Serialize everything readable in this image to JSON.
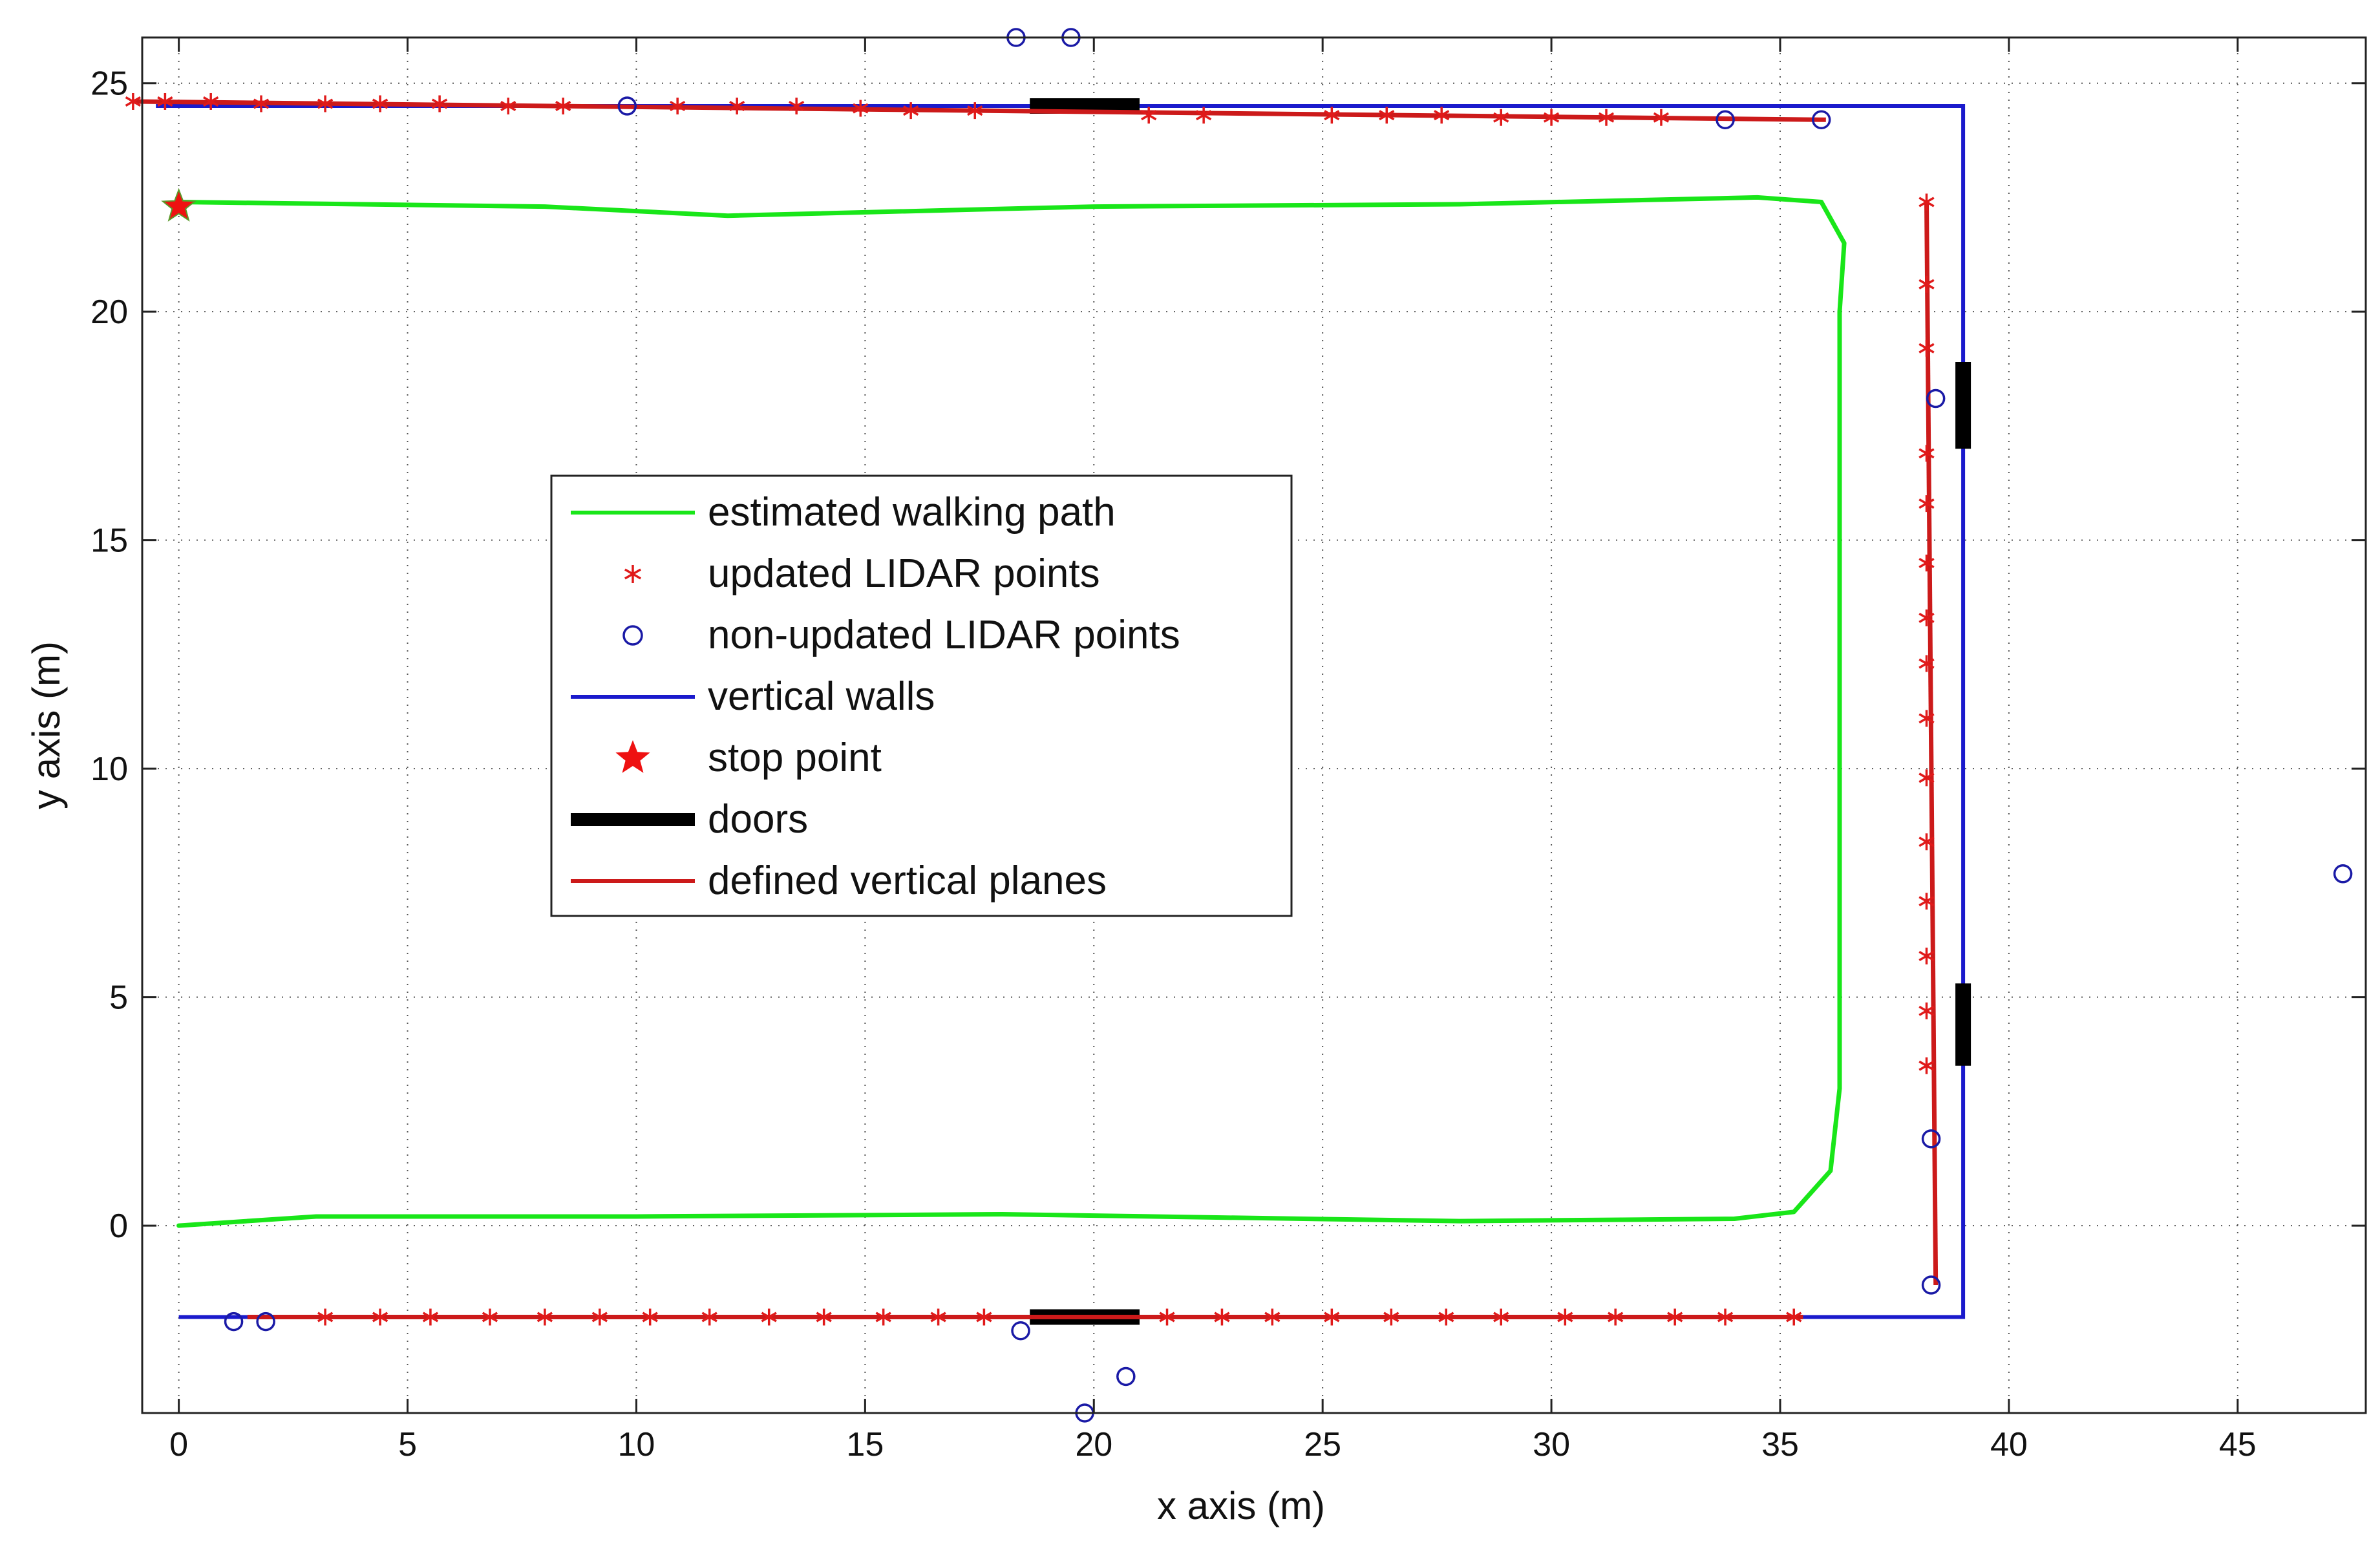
{
  "chart_data": {
    "type": "scatter",
    "xlabel": "x axis (m)",
    "ylabel": "y axis (m)",
    "xlim": [
      -0.8,
      47.8
    ],
    "ylim": [
      -4.1,
      26.0
    ],
    "xticks": [
      0,
      5,
      10,
      15,
      20,
      25,
      30,
      35,
      40,
      45
    ],
    "yticks": [
      0,
      5,
      10,
      15,
      20,
      25
    ],
    "grid": true,
    "legend_position": "center-left",
    "legend": [
      {
        "key": "path",
        "label": "estimated walking path"
      },
      {
        "key": "updated",
        "label": "updated LIDAR points"
      },
      {
        "key": "nonupdated",
        "label": "non-updated LIDAR points"
      },
      {
        "key": "walls",
        "label": "vertical walls"
      },
      {
        "key": "stop",
        "label": "stop point"
      },
      {
        "key": "doors",
        "label": "doors"
      },
      {
        "key": "planes",
        "label": "defined vertical planes"
      }
    ],
    "colors": {
      "path": "#19e619",
      "updated": "#e01a1a",
      "nonupdated": "#1a1aa6",
      "walls": "#1a1acc",
      "stop": "#ee1111",
      "doors": "#000000",
      "planes": "#cc1a1a"
    },
    "walls": [
      [
        [
          0,
          -2
        ],
        [
          39,
          -2
        ],
        [
          39,
          24.5
        ],
        [
          -0.5,
          24.5
        ]
      ]
    ],
    "doors": [
      [
        [
          18.6,
          24.5
        ],
        [
          21.0,
          24.5
        ]
      ],
      [
        [
          18.6,
          -2.0
        ],
        [
          21.0,
          -2.0
        ]
      ],
      [
        [
          39.0,
          17.0
        ],
        [
          39.0,
          18.9
        ]
      ],
      [
        [
          39.0,
          3.5
        ],
        [
          39.0,
          5.3
        ]
      ]
    ],
    "defined_planes": [
      [
        [
          -1.0,
          24.6
        ],
        [
          36.0,
          24.2
        ]
      ],
      [
        [
          1.5,
          -2.0
        ],
        [
          35.5,
          -2.0
        ]
      ],
      [
        [
          38.2,
          22.4
        ],
        [
          38.4,
          -1.3
        ]
      ]
    ],
    "walking_path": [
      [
        0.0,
        0.0
      ],
      [
        3.0,
        0.2
      ],
      [
        10.0,
        0.2
      ],
      [
        18.0,
        0.25
      ],
      [
        28.0,
        0.1
      ],
      [
        34.0,
        0.15
      ],
      [
        35.3,
        0.3
      ],
      [
        36.1,
        1.2
      ],
      [
        36.3,
        3.0
      ],
      [
        36.3,
        20.0
      ],
      [
        36.4,
        21.5
      ],
      [
        35.9,
        22.4
      ],
      [
        34.5,
        22.5
      ],
      [
        28.0,
        22.35
      ],
      [
        20.0,
        22.3
      ],
      [
        12.0,
        22.1
      ],
      [
        8.0,
        22.3
      ],
      [
        0.0,
        22.4
      ]
    ],
    "updated_points": [
      [
        -1.0,
        24.6
      ],
      [
        -0.3,
        24.6
      ],
      [
        0.7,
        24.6
      ],
      [
        1.8,
        24.55
      ],
      [
        3.2,
        24.55
      ],
      [
        4.4,
        24.55
      ],
      [
        5.7,
        24.55
      ],
      [
        7.2,
        24.5
      ],
      [
        8.4,
        24.5
      ],
      [
        10.9,
        24.5
      ],
      [
        12.2,
        24.5
      ],
      [
        13.5,
        24.5
      ],
      [
        14.9,
        24.45
      ],
      [
        16.0,
        24.4
      ],
      [
        17.4,
        24.4
      ],
      [
        21.2,
        24.3
      ],
      [
        22.4,
        24.3
      ],
      [
        25.2,
        24.3
      ],
      [
        26.4,
        24.3
      ],
      [
        27.6,
        24.3
      ],
      [
        28.9,
        24.25
      ],
      [
        30.0,
        24.25
      ],
      [
        31.2,
        24.25
      ],
      [
        32.4,
        24.25
      ],
      [
        3.2,
        -2.0
      ],
      [
        4.4,
        -2.0
      ],
      [
        5.5,
        -2.0
      ],
      [
        6.8,
        -2.0
      ],
      [
        8.0,
        -2.0
      ],
      [
        9.2,
        -2.0
      ],
      [
        10.3,
        -2.0
      ],
      [
        11.6,
        -2.0
      ],
      [
        12.9,
        -2.0
      ],
      [
        14.1,
        -2.0
      ],
      [
        15.4,
        -2.0
      ],
      [
        16.6,
        -2.0
      ],
      [
        17.6,
        -2.0
      ],
      [
        21.6,
        -2.0
      ],
      [
        22.8,
        -2.0
      ],
      [
        23.9,
        -2.0
      ],
      [
        25.2,
        -2.0
      ],
      [
        26.5,
        -2.0
      ],
      [
        27.7,
        -2.0
      ],
      [
        28.9,
        -2.0
      ],
      [
        30.3,
        -2.0
      ],
      [
        31.4,
        -2.0
      ],
      [
        32.7,
        -2.0
      ],
      [
        33.8,
        -2.0
      ],
      [
        35.3,
        -2.0
      ],
      [
        38.2,
        22.4
      ],
      [
        38.2,
        20.6
      ],
      [
        38.2,
        19.2
      ],
      [
        38.2,
        16.9
      ],
      [
        38.2,
        15.8
      ],
      [
        38.2,
        14.5
      ],
      [
        38.2,
        13.3
      ],
      [
        38.2,
        12.3
      ],
      [
        38.2,
        11.1
      ],
      [
        38.2,
        9.8
      ],
      [
        38.2,
        8.4
      ],
      [
        38.2,
        7.1
      ],
      [
        38.2,
        5.9
      ],
      [
        38.2,
        4.7
      ],
      [
        38.2,
        3.5
      ]
    ],
    "nonupdated_points": [
      [
        18.3,
        26.0
      ],
      [
        19.5,
        26.0
      ],
      [
        9.8,
        24.5
      ],
      [
        33.8,
        24.2
      ],
      [
        35.9,
        24.2
      ],
      [
        38.4,
        18.1
      ],
      [
        38.3,
        1.9
      ],
      [
        38.3,
        -1.3
      ],
      [
        47.3,
        7.7
      ],
      [
        1.2,
        -2.1
      ],
      [
        1.9,
        -2.1
      ],
      [
        18.4,
        -2.3
      ],
      [
        20.7,
        -3.3
      ],
      [
        19.8,
        -4.1
      ]
    ],
    "stop_point": [
      0.0,
      22.3
    ]
  }
}
